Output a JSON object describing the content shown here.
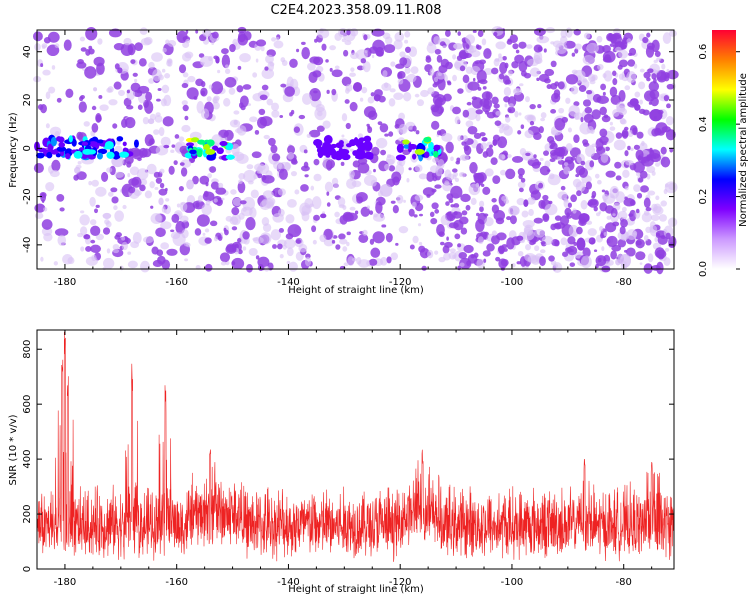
{
  "title": "C2E4.2023.358.09.11.R08",
  "chart_data": [
    {
      "type": "heatmap",
      "xlabel": "Height of straight line (km)",
      "ylabel": "Frequency (Hz)",
      "xlim": [
        -185,
        -71
      ],
      "ylim": [
        -50,
        49
      ],
      "xticks": [
        -180,
        -160,
        -140,
        -120,
        -100,
        -80
      ],
      "yticks": [
        -40,
        -20,
        0,
        20,
        40
      ],
      "colorbar": {
        "label": "Normalized spectral amplitude",
        "range": [
          0,
          0.66
        ],
        "ticks": [
          "0.0",
          "0.2",
          "0.4",
          "0.6"
        ],
        "colors": [
          "#ffffff",
          "#cc99ff",
          "#7f00ff",
          "#0000ff",
          "#00ffff",
          "#00ff00",
          "#ffff00",
          "#ff8000",
          "#ff0033"
        ]
      },
      "features": [
        {
          "label": "strong band at 0 Hz",
          "x_range": [
            -185,
            -167
          ],
          "max_amplitude": 0.3
        },
        {
          "label": "band segment",
          "x_range": [
            -158,
            -150
          ],
          "max_amplitude": 0.5
        },
        {
          "label": "band segment",
          "x_range": [
            -135,
            -125
          ],
          "max_amplitude": 0.15
        },
        {
          "label": "band segment",
          "x_range": [
            -120,
            -113
          ],
          "max_amplitude": 0.5
        }
      ],
      "sparse_region": {
        "x_range": [
          -185,
          -115
        ]
      },
      "colors": {
        "noise": "#8f3ee0",
        "noise_light": "#d9c2f5"
      }
    },
    {
      "type": "line",
      "xlabel": "Height of straight line (km)",
      "ylabel": "SNR (10 * v/v)",
      "xlim": [
        -185,
        -71
      ],
      "ylim": [
        0,
        870
      ],
      "xticks": [
        -180,
        -160,
        -140,
        -120,
        -100,
        -80
      ],
      "yticks": [
        0,
        200,
        400,
        600,
        800
      ],
      "color": "#ee2222",
      "baseline_mean": 130,
      "peaks": [
        {
          "x": -180.5,
          "y": 800
        },
        {
          "x": -180,
          "y": 870
        },
        {
          "x": -179.5,
          "y": 720
        },
        {
          "x": -168,
          "y": 760
        },
        {
          "x": -162,
          "y": 670
        },
        {
          "x": -154,
          "y": 450
        },
        {
          "x": -116,
          "y": 440
        },
        {
          "x": -87,
          "y": 400
        },
        {
          "x": -75,
          "y": 410
        }
      ]
    }
  ]
}
